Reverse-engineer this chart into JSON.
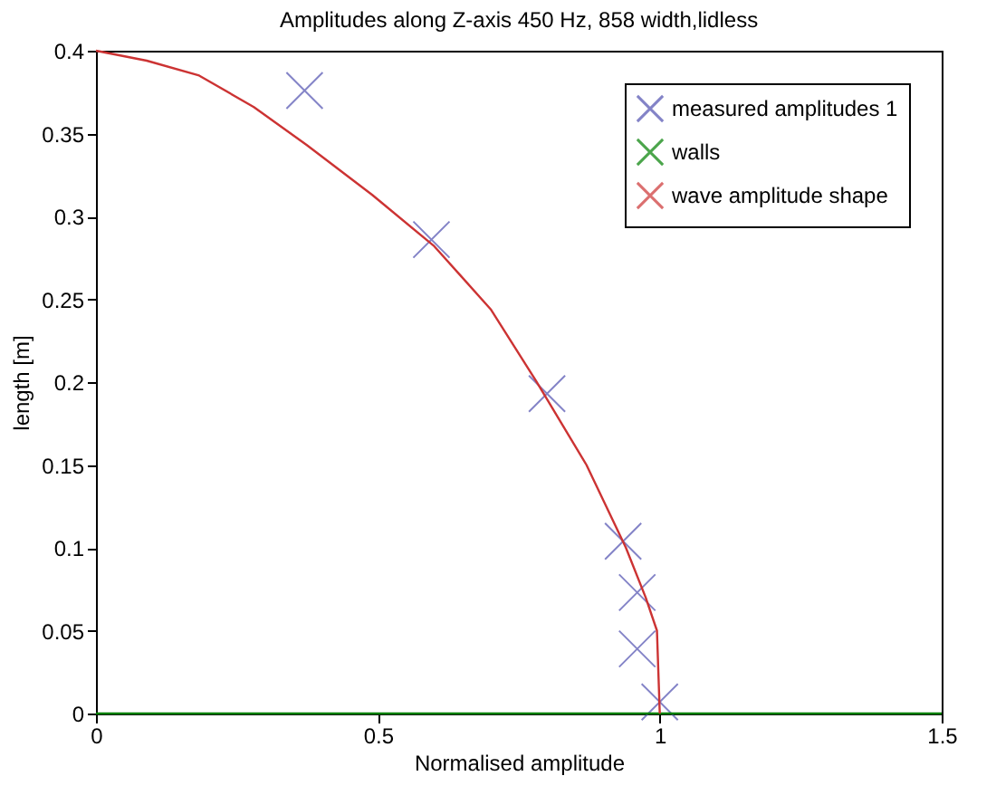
{
  "chart_data": {
    "type": "line",
    "title": "Amplitudes along Z-axis 450 Hz, 858 width,lidless",
    "xlabel": "Normalised amplitude",
    "ylabel": "length [m]",
    "xlim": [
      0,
      1.5
    ],
    "xticks": [
      0,
      0.5,
      1,
      1.5
    ],
    "ylim": [
      0,
      0.4
    ],
    "yticks": [
      0,
      0.05,
      0.1,
      0.15,
      0.2,
      0.25,
      0.3,
      0.35,
      0.4
    ],
    "grid": false,
    "legend": "top right",
    "series": [
      {
        "name": "measured amplitudes 1",
        "type": "scatter",
        "marker": "cross",
        "color": "#5050b0",
        "x": [
          0.37,
          0.595,
          0.8,
          0.935,
          0.96,
          0.96,
          1.0
        ],
        "values": [
          0.376,
          0.286,
          0.193,
          0.104,
          0.073,
          0.039,
          0.007
        ]
      },
      {
        "name": "walls",
        "color": "#008000",
        "x": [
          0,
          1.5
        ],
        "values": [
          0,
          0
        ]
      },
      {
        "name": "wave amplitude shape",
        "color": "#cc3333",
        "x": [
          0,
          0.09,
          0.183,
          0.28,
          0.374,
          0.49,
          0.6,
          0.7,
          0.78,
          0.87,
          0.94,
          0.975,
          0.995,
          1.0
        ],
        "values": [
          0.4,
          0.394,
          0.385,
          0.366,
          0.343,
          0.313,
          0.282,
          0.244,
          0.201,
          0.15,
          0.1,
          0.07,
          0.05,
          0.0
        ]
      }
    ]
  }
}
